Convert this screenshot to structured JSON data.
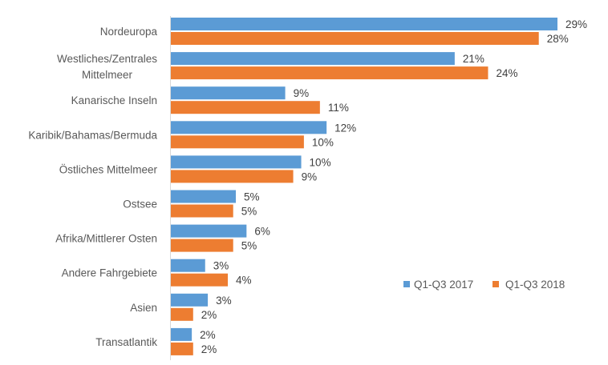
{
  "chart_data": {
    "type": "bar",
    "orientation": "horizontal",
    "title": "",
    "xlabel": "",
    "ylabel": "",
    "xlim": [
      0,
      29
    ],
    "grid": false,
    "legend_position": "bottom-right",
    "categories": [
      "Nordeuropa",
      "Westliches/Zentrales\nMittelmeer",
      "Kanarische Inseln",
      "Karibik/Bahamas/Bermuda",
      "Östliches Mittelmeer",
      "Ostsee",
      "Afrika/Mittlerer Osten",
      "Andere Fahrgebiete",
      "Asien",
      "Transatlantik"
    ],
    "series": [
      {
        "name": "Q1-Q3 2017",
        "color": "#5B9BD5",
        "values": [
          29,
          21.3,
          8.6,
          11.7,
          9.8,
          4.9,
          5.7,
          2.6,
          2.8,
          1.6
        ],
        "labels": [
          "29%",
          "21%",
          "9%",
          "12%",
          "10%",
          "5%",
          "6%",
          "3%",
          "3%",
          "2%"
        ]
      },
      {
        "name": "Q1-Q3 2018",
        "color": "#ED7D31",
        "values": [
          27.6,
          23.8,
          11.2,
          10.0,
          9.2,
          4.7,
          4.7,
          4.3,
          1.7,
          1.7
        ],
        "labels": [
          "28%",
          "24%",
          "11%",
          "10%",
          "9%",
          "5%",
          "5%",
          "4%",
          "2%",
          "2%"
        ]
      }
    ]
  }
}
